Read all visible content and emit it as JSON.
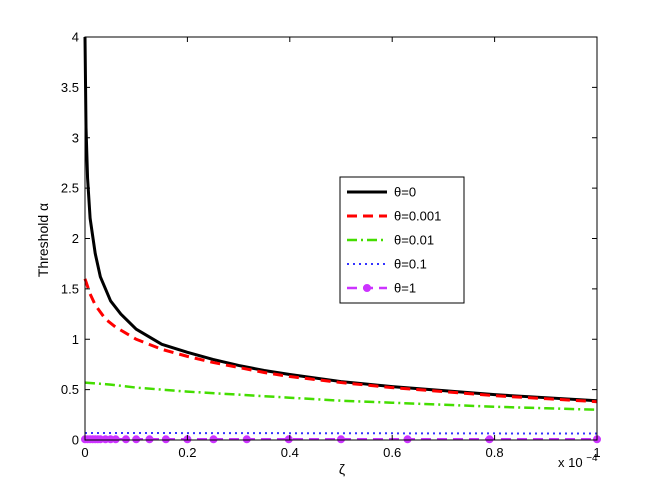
{
  "chart_data": {
    "type": "line",
    "xlabel": "ζ",
    "ylabel": "Threshold α",
    "x_multiplier": "x 10",
    "x_multiplier_exp": "−4",
    "xlim": [
      0,
      1
    ],
    "ylim": [
      0,
      4
    ],
    "xticks": [
      0,
      0.2,
      0.4,
      0.6,
      0.8,
      1
    ],
    "xtick_labels": [
      "0",
      "0.2",
      "0.4",
      "0.6",
      "0.8",
      "1"
    ],
    "yticks": [
      0,
      0.5,
      1,
      1.5,
      2,
      2.5,
      3,
      3.5,
      4
    ],
    "ytick_labels": [
      "0",
      "0.5",
      "1",
      "1.5",
      "2",
      "2.5",
      "3",
      "3.5",
      "4"
    ],
    "grid": false,
    "legend_position": "center-right",
    "series": [
      {
        "name": "θ=0",
        "color": "#000000",
        "style": "solid",
        "x": [
          0,
          0.002,
          0.005,
          0.01,
          0.02,
          0.03,
          0.05,
          0.07,
          0.1,
          0.15,
          0.2,
          0.25,
          0.3,
          0.35,
          0.4,
          0.5,
          0.6,
          0.7,
          0.8,
          0.9,
          1.0
        ],
        "y": [
          4.0,
          3.1,
          2.6,
          2.2,
          1.85,
          1.62,
          1.38,
          1.25,
          1.1,
          0.95,
          0.87,
          0.8,
          0.74,
          0.69,
          0.65,
          0.58,
          0.53,
          0.49,
          0.45,
          0.42,
          0.39
        ]
      },
      {
        "name": "θ=0.001",
        "color": "#ff0000",
        "style": "dashed",
        "x": [
          0,
          0.01,
          0.02,
          0.04,
          0.06,
          0.08,
          0.1,
          0.15,
          0.2,
          0.25,
          0.3,
          0.35,
          0.4,
          0.5,
          0.6,
          0.7,
          0.8,
          0.9,
          1.0
        ],
        "y": [
          1.6,
          1.45,
          1.34,
          1.2,
          1.12,
          1.06,
          1.0,
          0.9,
          0.83,
          0.77,
          0.72,
          0.67,
          0.63,
          0.57,
          0.52,
          0.48,
          0.44,
          0.41,
          0.38
        ]
      },
      {
        "name": "θ=0.01",
        "color": "#44dd00",
        "style": "dashdot",
        "x": [
          0,
          0.05,
          0.1,
          0.2,
          0.3,
          0.4,
          0.5,
          0.6,
          0.7,
          0.8,
          0.9,
          1.0
        ],
        "y": [
          0.57,
          0.55,
          0.52,
          0.48,
          0.45,
          0.42,
          0.39,
          0.37,
          0.35,
          0.33,
          0.315,
          0.3
        ]
      },
      {
        "name": "θ=0.1",
        "color": "#3333ff",
        "style": "dotted",
        "x": [
          0,
          0.5,
          1.0
        ],
        "y": [
          0.07,
          0.067,
          0.064
        ]
      },
      {
        "name": "θ=1",
        "color": "#cc33ff",
        "style": "dashed-marker",
        "x": [
          0,
          0.005,
          0.01,
          0.015,
          0.02,
          0.025,
          0.03,
          0.04,
          0.05,
          0.06,
          0.08,
          0.1,
          0.126,
          0.158,
          0.2,
          0.251,
          0.316,
          0.398,
          0.5,
          0.63,
          0.79,
          1.0
        ],
        "y": [
          0.007,
          0.007,
          0.007,
          0.007,
          0.007,
          0.007,
          0.007,
          0.007,
          0.007,
          0.007,
          0.007,
          0.007,
          0.007,
          0.007,
          0.007,
          0.007,
          0.007,
          0.007,
          0.007,
          0.007,
          0.007,
          0.007
        ]
      }
    ]
  }
}
